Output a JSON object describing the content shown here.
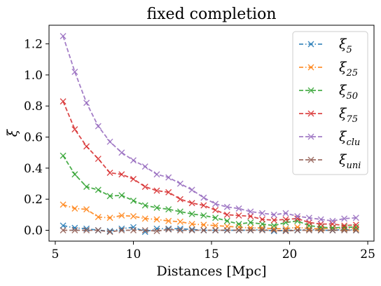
{
  "chart_data": {
    "type": "line",
    "title": "fixed completion",
    "xlabel": "Distances [Mpc]",
    "ylabel": "ξ",
    "xlim": [
      4.6,
      25.4
    ],
    "ylim": [
      -0.07,
      1.32
    ],
    "xticks": [
      5,
      10,
      15,
      20,
      25
    ],
    "yticks": [
      0.0,
      0.2,
      0.4,
      0.6,
      0.8,
      1.0,
      1.2
    ],
    "grid": false,
    "legend_position": "top-right",
    "x": [
      5.5,
      6.25,
      7.0,
      7.75,
      8.5,
      9.25,
      10.0,
      10.75,
      11.5,
      12.25,
      13.0,
      13.75,
      14.5,
      15.25,
      16.0,
      16.75,
      17.5,
      18.25,
      19.0,
      19.75,
      20.5,
      21.25,
      22.0,
      22.75,
      23.5,
      24.25
    ],
    "series": [
      {
        "name": "ξ5",
        "legend_base": "ξ",
        "legend_sub": "5",
        "color": "#1f77b4",
        "dash": "6,3,1.5,3",
        "values": [
          0.03,
          0.015,
          0.01,
          0.0,
          -0.005,
          0.01,
          0.02,
          -0.01,
          0.01,
          0.01,
          0.01,
          0.005,
          0.0,
          0.0,
          0.0,
          0.0,
          0.0,
          0.005,
          -0.005,
          0.0,
          0.0,
          0.005,
          0.0,
          0.0,
          0.005,
          0.0
        ]
      },
      {
        "name": "ξ25",
        "legend_base": "ξ",
        "legend_sub": "25",
        "color": "#ff7f0e",
        "dash": "6,3,1.5,3",
        "values": [
          0.165,
          0.14,
          0.135,
          0.085,
          0.08,
          0.095,
          0.09,
          0.075,
          0.07,
          0.06,
          0.055,
          0.04,
          0.035,
          0.03,
          0.025,
          0.02,
          0.015,
          0.015,
          0.01,
          0.01,
          0.02,
          0.01,
          0.01,
          0.015,
          0.01,
          0.01
        ]
      },
      {
        "name": "ξ50",
        "legend_base": "ξ",
        "legend_sub": "50",
        "color": "#2ca02c",
        "dash": "6,3",
        "values": [
          0.48,
          0.36,
          0.28,
          0.26,
          0.22,
          0.225,
          0.19,
          0.16,
          0.145,
          0.135,
          0.12,
          0.105,
          0.095,
          0.08,
          0.06,
          0.04,
          0.05,
          0.04,
          0.03,
          0.05,
          0.06,
          0.03,
          0.02,
          0.015,
          0.02,
          0.02
        ]
      },
      {
        "name": "ξ75",
        "legend_base": "ξ",
        "legend_sub": "75",
        "color": "#d62728",
        "dash": "6,3",
        "values": [
          0.83,
          0.65,
          0.54,
          0.46,
          0.37,
          0.36,
          0.33,
          0.28,
          0.255,
          0.245,
          0.2,
          0.175,
          0.16,
          0.13,
          0.1,
          0.095,
          0.09,
          0.07,
          0.065,
          0.07,
          0.075,
          0.05,
          0.04,
          0.04,
          0.03,
          0.035
        ]
      },
      {
        "name": "ξclu",
        "legend_base": "ξ",
        "legend_sub": "clu",
        "color": "#9467bd",
        "dash": "6,3",
        "values": [
          1.25,
          1.02,
          0.82,
          0.67,
          0.57,
          0.5,
          0.45,
          0.41,
          0.36,
          0.34,
          0.3,
          0.26,
          0.21,
          0.17,
          0.15,
          0.14,
          0.12,
          0.11,
          0.1,
          0.11,
          0.09,
          0.08,
          0.07,
          0.06,
          0.075,
          0.08
        ]
      },
      {
        "name": "ξuni",
        "legend_base": "ξ",
        "legend_sub": "uni",
        "color": "#8c564b",
        "dash": "6,3",
        "values": [
          0.0,
          0.0,
          0.0,
          0.0,
          -0.01,
          0.0,
          0.0,
          0.0,
          -0.005,
          0.005,
          0.0,
          0.0,
          0.0,
          0.0,
          0.0,
          0.0,
          0.0,
          0.0,
          0.0,
          -0.005,
          0.0,
          0.0,
          0.0,
          0.0,
          0.0,
          0.0
        ]
      }
    ]
  }
}
